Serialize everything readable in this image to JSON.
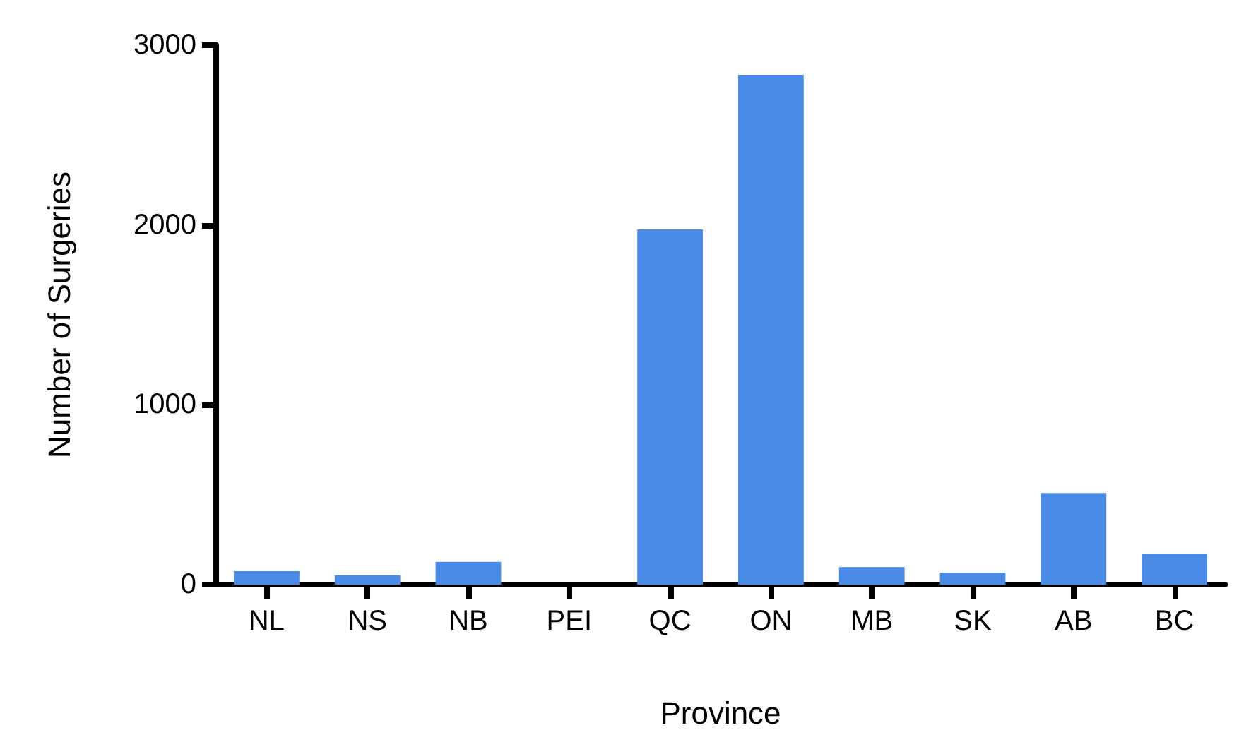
{
  "chart_data": {
    "type": "bar",
    "xlabel": "Province",
    "ylabel": "Number of Surgeries",
    "categories": [
      "NL",
      "NS",
      "NB",
      "PEI",
      "QC",
      "ON",
      "MB",
      "SK",
      "AB",
      "BC"
    ],
    "values": [
      75,
      52,
      127,
      0,
      1975,
      2835,
      97,
      67,
      509,
      172
    ],
    "color": "#4a8be8",
    "ylim": [
      0,
      3000
    ],
    "yticks": [
      0,
      1000,
      2000,
      3000
    ],
    "grid": false
  }
}
